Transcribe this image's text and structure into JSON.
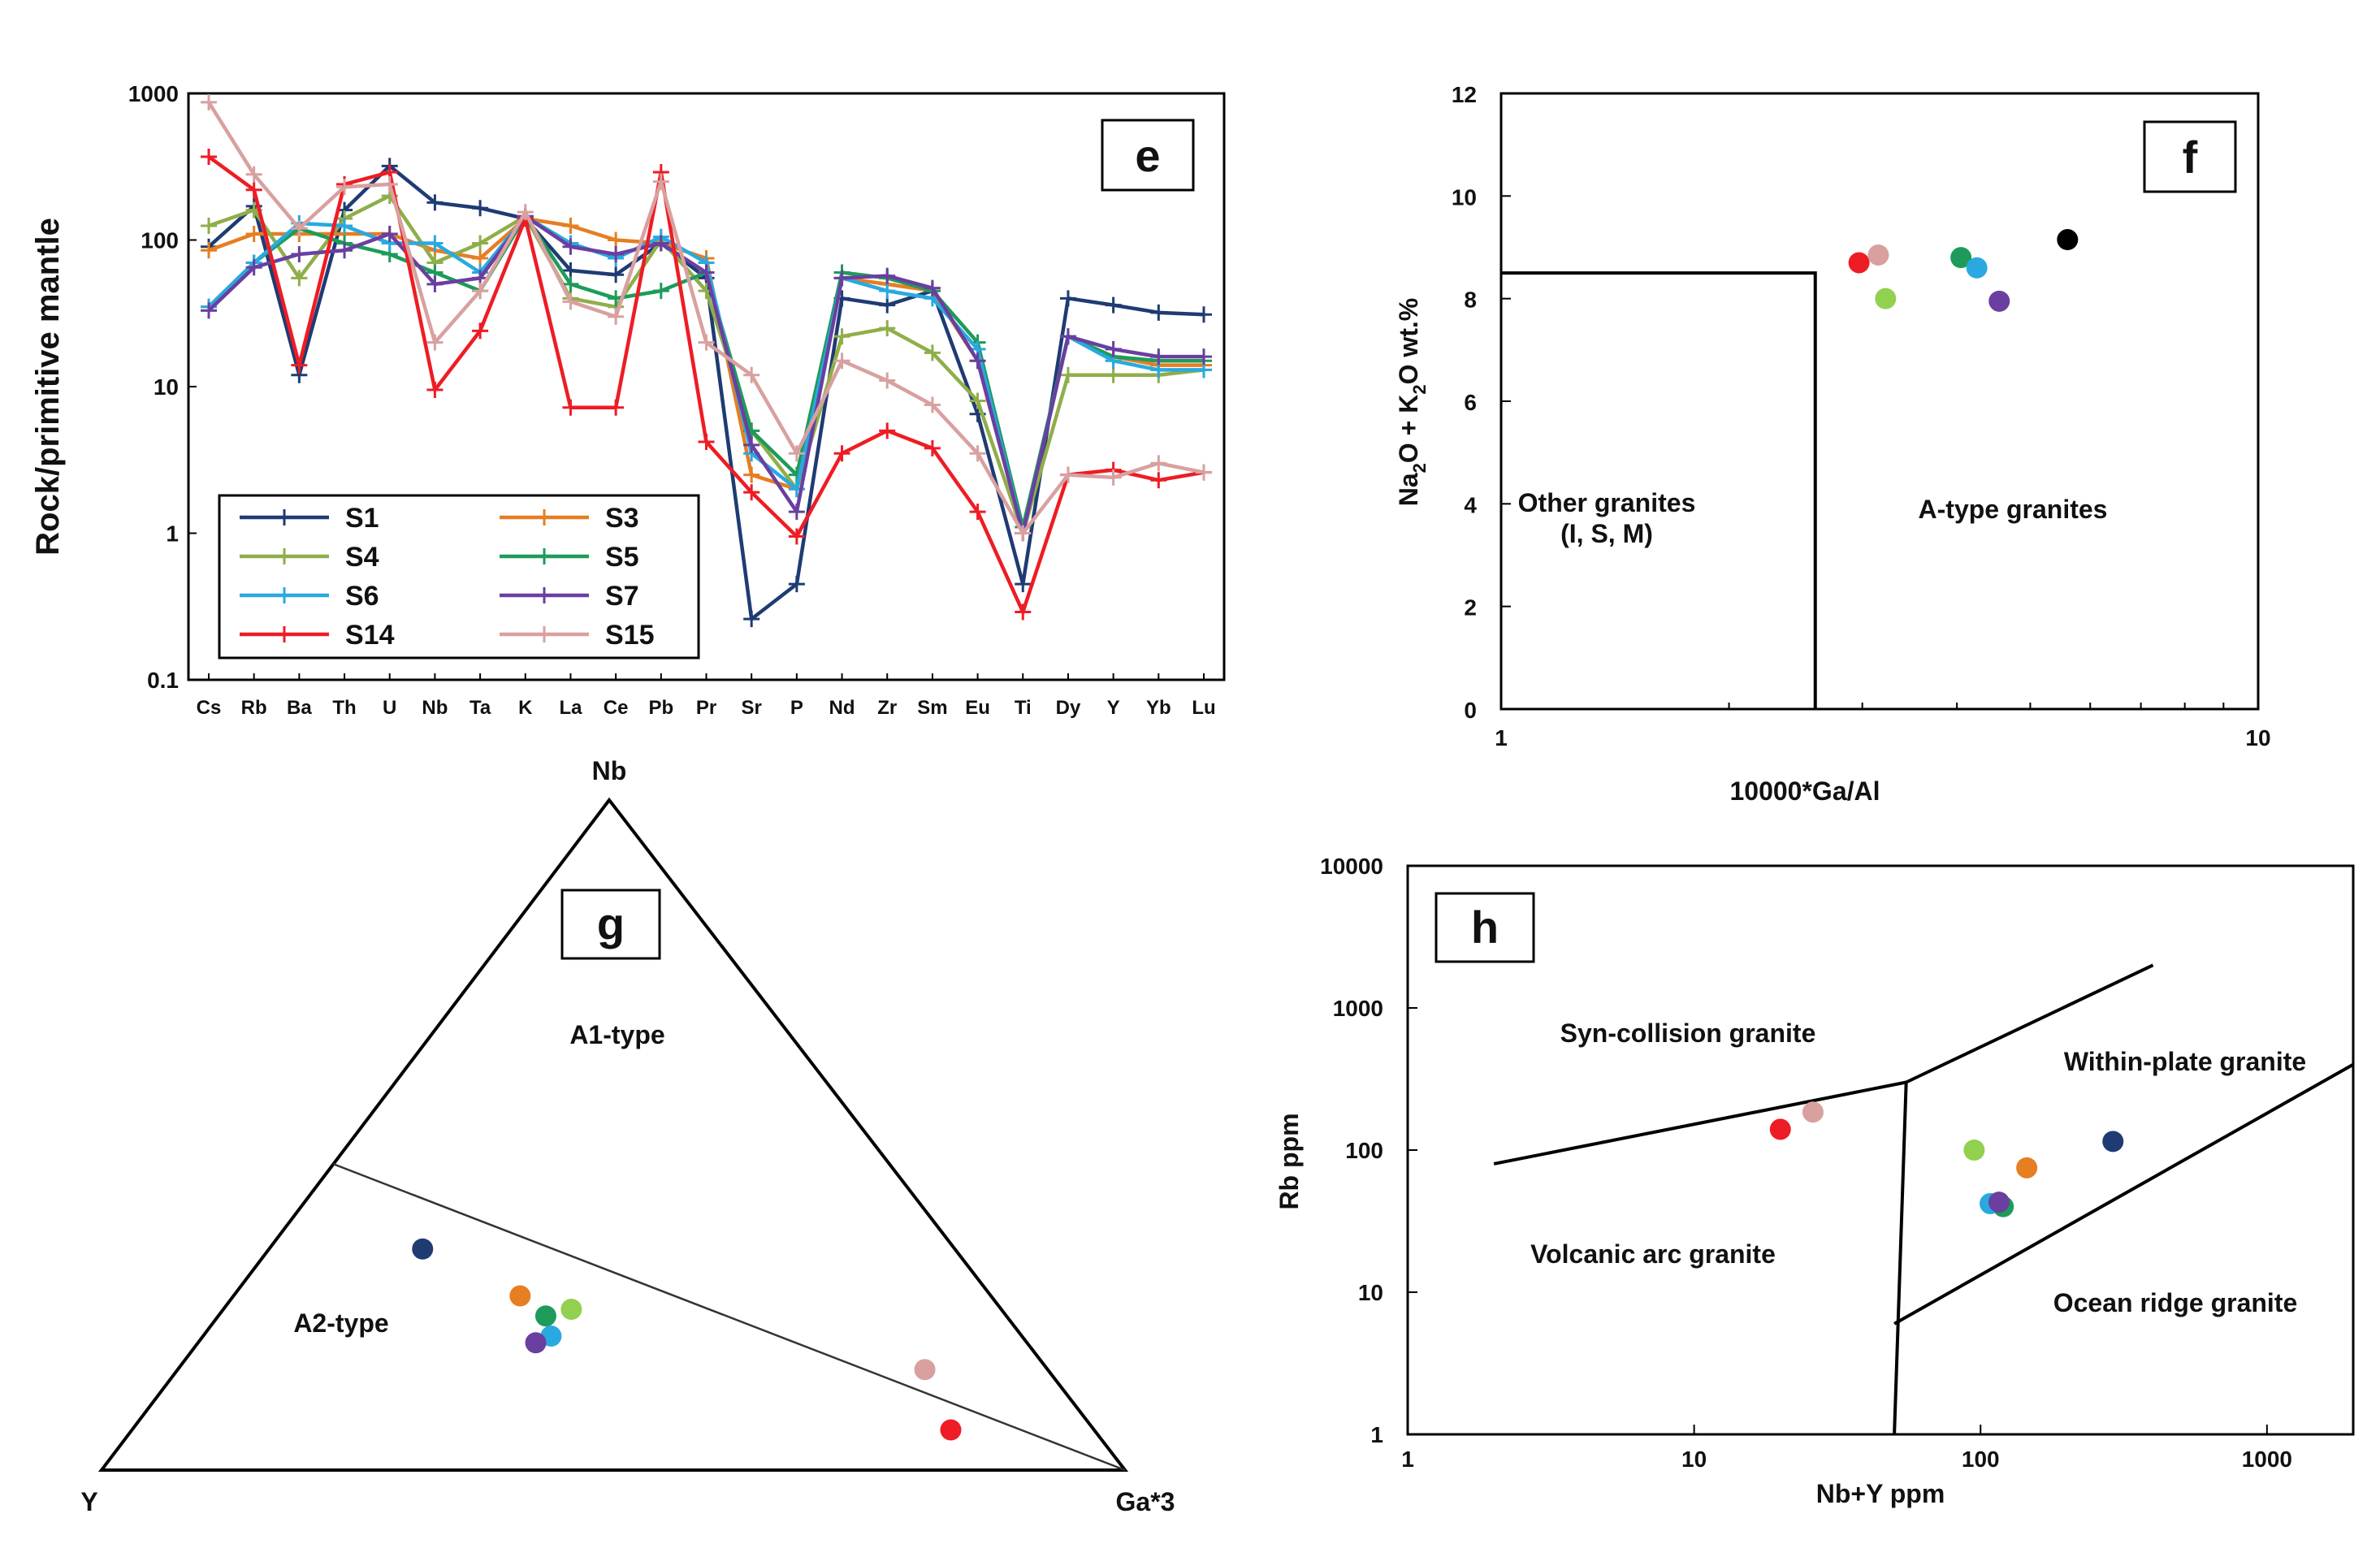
{
  "colors": {
    "S1": "#1f3b73",
    "S3": "#e67e22",
    "S4": "#8fae4a",
    "S5": "#1e9b5a",
    "S6": "#29a9e0",
    "S7": "#6a3fa0",
    "S14": "#ee1c24",
    "S15": "#d9a0a0",
    "black": "#000000",
    "green_light": "#92d050"
  },
  "chart_data": [
    {
      "type": "line",
      "panel": "e",
      "ylabel": "Rock/primitive mantle",
      "yscale": "log",
      "ylim": [
        0.1,
        1000
      ],
      "yticks": [
        "0.1",
        "1",
        "10",
        "100",
        "1000"
      ],
      "categories": [
        "Cs",
        "Rb",
        "Ba",
        "Th",
        "U",
        "Nb",
        "Ta",
        "K",
        "La",
        "Ce",
        "Pb",
        "Pr",
        "Sr",
        "P",
        "Nd",
        "Zr",
        "Sm",
        "Eu",
        "Ti",
        "Dy",
        "Y",
        "Yb",
        "Lu"
      ],
      "series": [
        {
          "name": "S1",
          "color": "#1f3b73",
          "values": [
            90,
            170,
            12,
            160,
            320,
            180,
            165,
            140,
            62,
            58,
            95,
            55,
            0.26,
            0.45,
            40,
            36,
            45,
            6.5,
            0.45,
            40,
            36,
            32,
            31
          ]
        },
        {
          "name": "S3",
          "color": "#e67e22",
          "values": [
            85,
            110,
            110,
            110,
            110,
            85,
            75,
            140,
            125,
            100,
            95,
            75,
            2.5,
            2,
            55,
            50,
            45,
            15,
            1,
            22,
            16,
            14,
            14
          ]
        },
        {
          "name": "S4",
          "color": "#8fae4a",
          "values": [
            125,
            160,
            55,
            140,
            200,
            70,
            95,
            145,
            40,
            35,
            100,
            45,
            5,
            2,
            22,
            25,
            17,
            8,
            1,
            12,
            12,
            12,
            13
          ]
        },
        {
          "name": "S5",
          "color": "#1e9b5a",
          "values": [
            35,
            70,
            120,
            95,
            80,
            60,
            45,
            145,
            50,
            40,
            45,
            60,
            5,
            2.5,
            60,
            55,
            45,
            20,
            1.1,
            22,
            16,
            15,
            15
          ]
        },
        {
          "name": "S6",
          "color": "#29a9e0",
          "values": [
            35,
            70,
            130,
            125,
            95,
            95,
            60,
            145,
            95,
            75,
            105,
            70,
            3.5,
            2,
            55,
            45,
            40,
            18,
            1,
            22,
            15,
            13,
            13
          ]
        },
        {
          "name": "S7",
          "color": "#6a3fa0",
          "values": [
            33,
            65,
            80,
            85,
            110,
            50,
            55,
            145,
            90,
            80,
            95,
            60,
            4,
            1.4,
            55,
            57,
            47,
            15,
            1,
            22,
            18,
            16,
            16
          ]
        },
        {
          "name": "S14",
          "color": "#ee1c24",
          "values": [
            370,
            220,
            14,
            240,
            290,
            9.5,
            24,
            140,
            7.2,
            7.2,
            290,
            4.2,
            1.9,
            0.95,
            3.5,
            5,
            3.8,
            1.4,
            0.29,
            2.5,
            2.7,
            2.3,
            2.6
          ]
        },
        {
          "name": "S15",
          "color": "#d9a0a0",
          "values": [
            870,
            280,
            120,
            230,
            240,
            20,
            45,
            155,
            38,
            30,
            250,
            20,
            12,
            3.5,
            15,
            11,
            7.5,
            3.5,
            1,
            2.5,
            2.4,
            3,
            2.6
          ]
        }
      ],
      "legend": [
        "S1",
        "S3",
        "S4",
        "S5",
        "S6",
        "S7",
        "S14",
        "S15"
      ],
      "legend_position": "bottom-left"
    },
    {
      "type": "scatter",
      "panel": "f",
      "xlabel": "10000*Ga/Al",
      "ylabel": "Na2O + K2O wt.%",
      "ylabel_parts": [
        "Na",
        "2",
        "O + K",
        "2",
        "O wt.%"
      ],
      "xscale": "log",
      "xlim": [
        1,
        10
      ],
      "ylim": [
        0,
        12
      ],
      "xticks": [
        "1",
        "10"
      ],
      "yticks": [
        "0",
        "2",
        "4",
        "6",
        "8",
        "10",
        "12"
      ],
      "regions": [
        "Other granites",
        "(I, S, M)",
        "A-type granites"
      ],
      "boundary": {
        "x": 2.6,
        "y": 8.5
      },
      "points": [
        {
          "name": "S14",
          "color": "#ee1c24",
          "x": 2.97,
          "y": 8.7
        },
        {
          "name": "S15",
          "color": "#d9a0a0",
          "x": 3.15,
          "y": 8.85
        },
        {
          "name": "S4",
          "color": "#92d050",
          "x": 3.22,
          "y": 8.0
        },
        {
          "name": "S5",
          "color": "#1e9b5a",
          "x": 4.05,
          "y": 8.8
        },
        {
          "name": "S6",
          "color": "#29a9e0",
          "x": 4.25,
          "y": 8.6
        },
        {
          "name": "S7",
          "color": "#6a3fa0",
          "x": 4.55,
          "y": 7.95
        },
        {
          "name": "S1",
          "color": "#000000",
          "x": 5.6,
          "y": 9.15
        }
      ]
    },
    {
      "type": "ternary",
      "panel": "g",
      "vertices": [
        "Nb",
        "Y",
        "Ga*3"
      ],
      "regions": [
        "A1-type",
        "A2-type"
      ],
      "points": [
        {
          "name": "S1",
          "color": "#1f3b73",
          "nb": 0.33,
          "y": 0.52,
          "ga": 0.15
        },
        {
          "name": "S3",
          "color": "#e67e22",
          "nb": 0.26,
          "y": 0.46,
          "ga": 0.28
        },
        {
          "name": "S4",
          "color": "#92d050",
          "nb": 0.24,
          "y": 0.42,
          "ga": 0.34
        },
        {
          "name": "S5",
          "color": "#1e9b5a",
          "nb": 0.23,
          "y": 0.45,
          "ga": 0.32
        },
        {
          "name": "S6",
          "color": "#29a9e0",
          "nb": 0.2,
          "y": 0.46,
          "ga": 0.34
        },
        {
          "name": "S7",
          "color": "#6a3fa0",
          "nb": 0.19,
          "y": 0.48,
          "ga": 0.33
        },
        {
          "name": "S15",
          "color": "#d9a0a0",
          "nb": 0.15,
          "y": 0.12,
          "ga": 0.73
        },
        {
          "name": "S14",
          "color": "#ee1c24",
          "nb": 0.06,
          "y": 0.14,
          "ga": 0.8
        }
      ]
    },
    {
      "type": "scatter",
      "panel": "h",
      "xlabel": "Nb+Y ppm",
      "ylabel": "Rb ppm",
      "xscale": "log",
      "yscale": "log",
      "xlim": [
        1,
        2000
      ],
      "ylim": [
        1,
        10000
      ],
      "xticks": [
        "1",
        "10",
        "100",
        "1000"
      ],
      "yticks": [
        "1",
        "10",
        "100",
        "1000",
        "10000"
      ],
      "regions": [
        "Syn-collision granite",
        "Within-plate granite",
        "Volcanic arc granite",
        "Ocean ridge granite"
      ],
      "points": [
        {
          "name": "S14",
          "color": "#ee1c24",
          "x": 20,
          "y": 140
        },
        {
          "name": "S15",
          "color": "#d9a0a0",
          "x": 26,
          "y": 185
        },
        {
          "name": "S4",
          "color": "#92d050",
          "x": 95,
          "y": 100
        },
        {
          "name": "S3",
          "color": "#e67e22",
          "x": 145,
          "y": 75
        },
        {
          "name": "S1",
          "color": "#1f3b73",
          "x": 290,
          "y": 115
        },
        {
          "name": "S6",
          "color": "#29a9e0",
          "x": 108,
          "y": 42
        },
        {
          "name": "S5",
          "color": "#1e9b5a",
          "x": 120,
          "y": 40
        },
        {
          "name": "S7",
          "color": "#6a3fa0",
          "x": 116,
          "y": 43
        }
      ]
    }
  ]
}
